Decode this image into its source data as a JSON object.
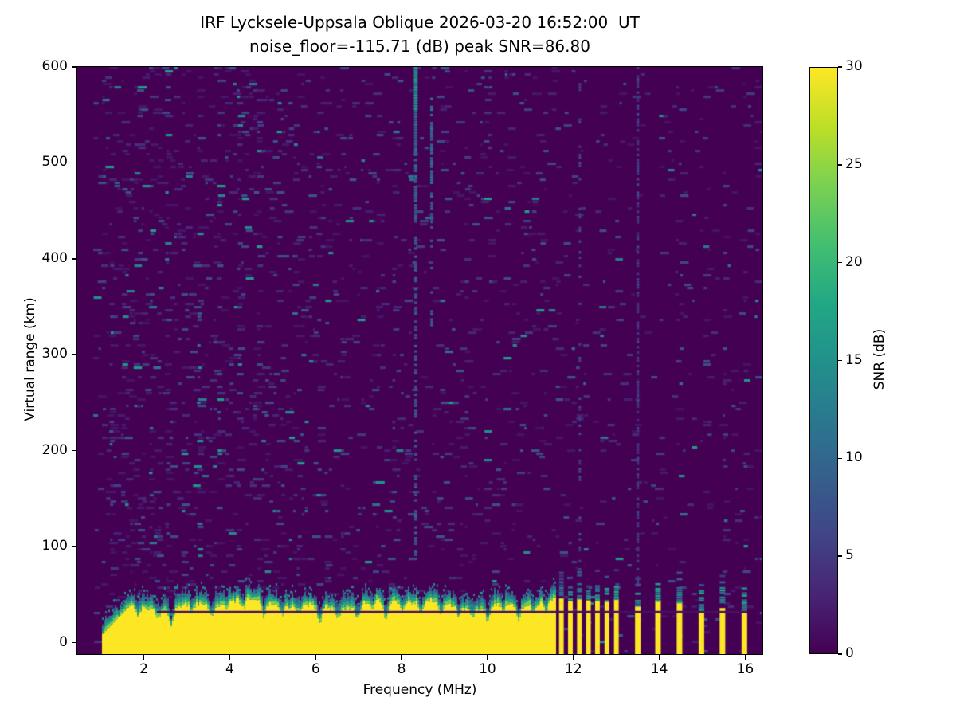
{
  "figure": {
    "background": "#ffffff"
  },
  "chart_data": {
    "type": "heatmap",
    "title": "IRF Lycksele-Uppsala Oblique 2026-03-20 16:52:00  UT",
    "subtitle": "noise_floor=-115.71 (dB) peak SNR=86.80",
    "xlabel": "Frequency (MHz)",
    "ylabel": "Virtual range (km)",
    "xlim": [
      0.45,
      16.4
    ],
    "ylim": [
      -12,
      600
    ],
    "x_ticks": [
      {
        "value": 2,
        "label": "2"
      },
      {
        "value": 4,
        "label": "4"
      },
      {
        "value": 6,
        "label": "6"
      },
      {
        "value": 8,
        "label": "8"
      },
      {
        "value": 10,
        "label": "10"
      },
      {
        "value": 12,
        "label": "12"
      },
      {
        "value": 14,
        "label": "14"
      },
      {
        "value": 16,
        "label": "16"
      }
    ],
    "y_ticks": [
      {
        "value": 0,
        "label": "0"
      },
      {
        "value": 100,
        "label": "100"
      },
      {
        "value": 200,
        "label": "200"
      },
      {
        "value": 300,
        "label": "300"
      },
      {
        "value": 400,
        "label": "400"
      },
      {
        "value": 500,
        "label": "500"
      },
      {
        "value": 600,
        "label": "600"
      }
    ],
    "colorbar": {
      "label": "SNR (dB)",
      "vmin": 0,
      "vmax": 30,
      "ticks": [
        {
          "value": 0,
          "label": "0"
        },
        {
          "value": 5,
          "label": "5"
        },
        {
          "value": 10,
          "label": "10"
        },
        {
          "value": 15,
          "label": "15"
        },
        {
          "value": 20,
          "label": "20"
        },
        {
          "value": 25,
          "label": "25"
        },
        {
          "value": 30,
          "label": "30"
        }
      ],
      "colormap": "viridis"
    },
    "colormap_stops": [
      [
        0.0,
        "#440154"
      ],
      [
        0.1,
        "#482475"
      ],
      [
        0.2,
        "#414487"
      ],
      [
        0.3,
        "#355f8d"
      ],
      [
        0.4,
        "#2a788e"
      ],
      [
        0.5,
        "#21918c"
      ],
      [
        0.6,
        "#22a884"
      ],
      [
        0.7,
        "#44bf70"
      ],
      [
        0.8,
        "#7ad151"
      ],
      [
        0.9,
        "#bddf26"
      ],
      [
        1.0,
        "#fde725"
      ]
    ],
    "noise": {
      "seed": 42,
      "f_start": 0.82,
      "base_density": [
        {
          "f_max": 6.0,
          "p": 0.085
        },
        {
          "f_max": 11.6,
          "p": 0.05
        },
        {
          "f_max": 17.0,
          "p": 0.028
        }
      ],
      "columns": [
        {
          "f": 1.2,
          "s": 0.4
        },
        {
          "f": 1.5,
          "s": 0.55
        },
        {
          "f": 1.8,
          "s": 0.6
        },
        {
          "f": 2.1,
          "s": 0.5
        },
        {
          "f": 2.5,
          "s": 0.45
        },
        {
          "f": 2.9,
          "s": 0.4
        },
        {
          "f": 3.25,
          "s": 0.45
        },
        {
          "f": 3.7,
          "s": 0.35
        },
        {
          "f": 4.15,
          "s": 0.35
        },
        {
          "f": 4.6,
          "s": 0.3
        },
        {
          "f": 5.05,
          "s": 0.35
        },
        {
          "f": 5.5,
          "s": 0.3
        },
        {
          "f": 6.05,
          "s": 0.45
        },
        {
          "f": 6.55,
          "s": 0.3
        },
        {
          "f": 7.0,
          "s": 0.35
        },
        {
          "f": 7.45,
          "s": 0.4
        },
        {
          "f": 7.8,
          "s": 0.3
        },
        {
          "f": 8.1,
          "s": 0.3
        },
        {
          "f": 8.95,
          "s": 0.35
        },
        {
          "f": 9.4,
          "s": 0.3
        },
        {
          "f": 9.9,
          "s": 0.35
        },
        {
          "f": 10.35,
          "s": 0.3
        },
        {
          "f": 10.8,
          "s": 0.35
        },
        {
          "f": 11.25,
          "s": 0.4
        },
        {
          "f": 11.72,
          "s": 0.35
        },
        {
          "f": 12.0,
          "s": 0.45
        },
        {
          "f": 12.35,
          "s": 0.4
        },
        {
          "f": 12.6,
          "s": 0.35
        },
        {
          "f": 12.99,
          "s": 0.35
        },
        {
          "f": 13.3,
          "s": 0.3
        },
        {
          "f": 13.97,
          "s": 0.45
        },
        {
          "f": 14.47,
          "s": 0.4
        },
        {
          "f": 14.98,
          "s": 0.4
        },
        {
          "f": 15.47,
          "s": 0.45
        },
        {
          "f": 15.98,
          "s": 0.5
        },
        {
          "f": 16.25,
          "s": 0.35
        }
      ]
    },
    "streaks": [
      {
        "f": 8.33,
        "km_top": 600,
        "km_bottom": 555,
        "width_mhz": 0.09,
        "density": 1.0,
        "v": 0.48
      },
      {
        "f": 8.33,
        "km_top": 555,
        "km_bottom": 460,
        "width_mhz": 0.08,
        "density": 0.85,
        "v": 0.3
      },
      {
        "f": 8.33,
        "km_top": 460,
        "km_bottom": 90,
        "width_mhz": 0.07,
        "density": 0.45,
        "v": 0.26
      },
      {
        "f": 8.7,
        "km_top": 568,
        "km_bottom": 465,
        "width_mhz": 0.07,
        "density": 0.75,
        "v": 0.33
      },
      {
        "f": 8.7,
        "km_top": 465,
        "km_bottom": 330,
        "width_mhz": 0.06,
        "density": 0.35,
        "v": 0.27
      },
      {
        "f": 13.5,
        "km_top": 600,
        "km_bottom": -10,
        "width_mhz": 0.065,
        "density": 0.6,
        "v": 0.15
      },
      {
        "f": 12.15,
        "km_top": 600,
        "km_bottom": 60,
        "width_mhz": 0.06,
        "density": 0.3,
        "v": 0.17
      }
    ],
    "ground_echo": {
      "f_start": 1.03,
      "f_end": 11.58,
      "top_mean_km": 40,
      "fringe_km": 12,
      "dark_line_km": 33,
      "dark_line_f": [
        2.3,
        16.05
      ],
      "dips": [
        {
          "f": 1.85,
          "depth": 10,
          "w": 0.05
        },
        {
          "f": 2.3,
          "depth": 9,
          "w": 0.05
        },
        {
          "f": 2.62,
          "depth": 17,
          "w": 0.05
        },
        {
          "f": 3.1,
          "depth": 9,
          "w": 0.04
        },
        {
          "f": 3.55,
          "depth": 12,
          "w": 0.05
        },
        {
          "f": 3.9,
          "depth": 8,
          "w": 0.04
        },
        {
          "f": 4.3,
          "depth": 10,
          "w": 0.05
        },
        {
          "f": 4.78,
          "depth": 16,
          "w": 0.05
        },
        {
          "f": 5.2,
          "depth": 9,
          "w": 0.04
        },
        {
          "f": 5.6,
          "depth": 8,
          "w": 0.04
        },
        {
          "f": 6.07,
          "depth": 18,
          "w": 0.05
        },
        {
          "f": 6.5,
          "depth": 10,
          "w": 0.04
        },
        {
          "f": 6.96,
          "depth": 14,
          "w": 0.05
        },
        {
          "f": 7.3,
          "depth": 9,
          "w": 0.04
        },
        {
          "f": 7.62,
          "depth": 20,
          "w": 0.05
        },
        {
          "f": 8.0,
          "depth": 10,
          "w": 0.04
        },
        {
          "f": 8.45,
          "depth": 12,
          "w": 0.05
        },
        {
          "f": 8.9,
          "depth": 16,
          "w": 0.05
        },
        {
          "f": 9.3,
          "depth": 9,
          "w": 0.04
        },
        {
          "f": 9.65,
          "depth": 10,
          "w": 0.04
        },
        {
          "f": 9.98,
          "depth": 14,
          "w": 0.05
        },
        {
          "f": 10.35,
          "depth": 9,
          "w": 0.04
        },
        {
          "f": 10.7,
          "depth": 16,
          "w": 0.05
        },
        {
          "f": 11.05,
          "depth": 10,
          "w": 0.04
        },
        {
          "f": 11.35,
          "depth": 12,
          "w": 0.04
        }
      ]
    },
    "stripes": [
      {
        "f": 11.72,
        "yellow_top_km": 46,
        "fringe_top_km": 58,
        "width_mhz": 0.11
      },
      {
        "f": 11.93,
        "yellow_top_km": 43,
        "fringe_top_km": 56,
        "width_mhz": 0.11
      },
      {
        "f": 12.14,
        "yellow_top_km": 47,
        "fringe_top_km": 62,
        "width_mhz": 0.11
      },
      {
        "f": 12.35,
        "yellow_top_km": 44,
        "fringe_top_km": 57,
        "width_mhz": 0.11
      },
      {
        "f": 12.56,
        "yellow_top_km": 45,
        "fringe_top_km": 60,
        "width_mhz": 0.11
      },
      {
        "f": 12.78,
        "yellow_top_km": 43,
        "fringe_top_km": 57,
        "width_mhz": 0.11
      },
      {
        "f": 13.0,
        "yellow_top_km": 46,
        "fringe_top_km": 64,
        "width_mhz": 0.11
      },
      {
        "f": 13.5,
        "yellow_top_km": 38,
        "fringe_top_km": 52,
        "width_mhz": 0.13
      },
      {
        "f": 13.97,
        "yellow_top_km": 44,
        "fringe_top_km": 62,
        "width_mhz": 0.13
      },
      {
        "f": 14.47,
        "yellow_top_km": 42,
        "fringe_top_km": 58,
        "width_mhz": 0.13
      },
      {
        "f": 14.98,
        "yellow_top_km": 33,
        "fringe_top_km": 55,
        "width_mhz": 0.13
      },
      {
        "f": 15.47,
        "yellow_top_km": 36,
        "fringe_top_km": 58,
        "width_mhz": 0.13
      },
      {
        "f": 15.98,
        "yellow_top_km": 34,
        "fringe_top_km": 60,
        "width_mhz": 0.13
      }
    ]
  }
}
